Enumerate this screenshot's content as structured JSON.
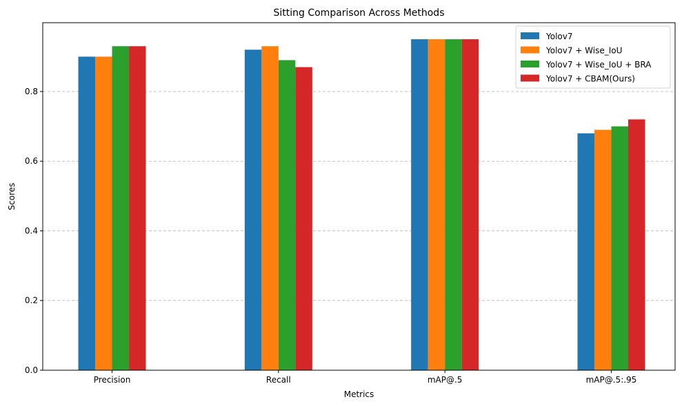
{
  "chart_data": {
    "type": "bar",
    "title": "Sitting Comparison Across Methods",
    "xlabel": "Metrics",
    "ylabel": "Scores",
    "categories": [
      "Precision",
      "Recall",
      "mAP@.5",
      "mAP@.5:.95"
    ],
    "series": [
      {
        "name": "Yolov7",
        "color": "#1f77b4",
        "values": [
          0.9,
          0.92,
          0.95,
          0.68
        ]
      },
      {
        "name": "Yolov7 + Wise_IoU",
        "color": "#ff7f0e",
        "values": [
          0.9,
          0.93,
          0.95,
          0.69
        ]
      },
      {
        "name": "Yolov7 + Wise_IoU + BRA",
        "color": "#2ca02c",
        "values": [
          0.93,
          0.89,
          0.95,
          0.7
        ]
      },
      {
        "name": "Yolov7 + CBAM(Ours)",
        "color": "#d62728",
        "values": [
          0.93,
          0.87,
          0.95,
          0.72
        ]
      }
    ],
    "ylim": [
      0,
      0.9975
    ],
    "yticks": [
      "0.0",
      "0.2",
      "0.4",
      "0.6",
      "0.8"
    ],
    "grid": "y-dashed",
    "legend": "top-right"
  }
}
